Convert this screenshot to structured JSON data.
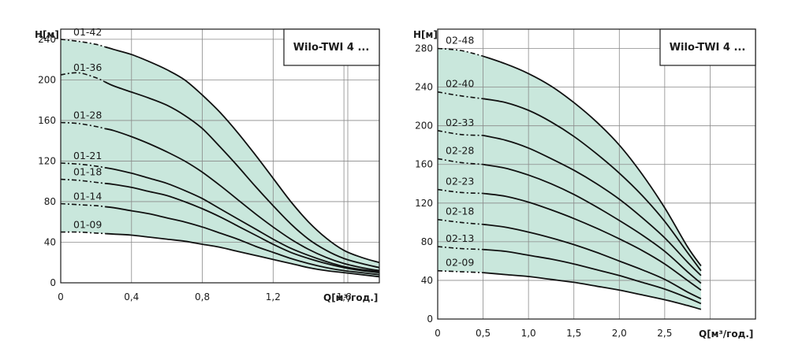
{
  "colors": {
    "band": "#c9e7dc",
    "curve": "#111111",
    "grid": "#8a8a8a"
  },
  "chart_data": [
    {
      "type": "line",
      "title": "Wilo-TWI 4 ...",
      "ylabel": "H[м]",
      "xlabel": "Q[м³/год.]",
      "xlim": [
        0,
        1.8
      ],
      "ylim": [
        0,
        250
      ],
      "xticks": [
        0,
        0.4,
        0.8,
        1.2,
        1.6
      ],
      "xtick_labels": [
        "0",
        "0,4",
        "0,8",
        "1,2",
        "1,6"
      ],
      "yticks": [
        0,
        40,
        80,
        120,
        160,
        200,
        240
      ],
      "ytick_labels": [
        "0",
        "40",
        "80",
        "120",
        "160",
        "200",
        "240"
      ],
      "dash_until": 0.25,
      "series": [
        {
          "name": "01-42",
          "x": [
            0,
            0.1,
            0.2,
            0.3,
            0.4,
            0.5,
            0.6,
            0.7,
            0.8,
            0.9,
            1.0,
            1.1,
            1.2,
            1.3,
            1.4,
            1.5,
            1.6,
            1.7,
            1.8
          ],
          "values": [
            240,
            238,
            235,
            230,
            225,
            218,
            210,
            200,
            185,
            168,
            148,
            126,
            103,
            80,
            60,
            44,
            32,
            25,
            20
          ]
        },
        {
          "name": "01-36",
          "x": [
            0,
            0.1,
            0.2,
            0.3,
            0.4,
            0.5,
            0.6,
            0.7,
            0.8,
            0.9,
            1.0,
            1.1,
            1.2,
            1.3,
            1.4,
            1.5,
            1.6,
            1.7,
            1.8
          ],
          "values": [
            205,
            207,
            202,
            194,
            188,
            182,
            175,
            165,
            152,
            134,
            115,
            95,
            76,
            58,
            43,
            32,
            24,
            19,
            15
          ]
        },
        {
          "name": "01-28",
          "x": [
            0,
            0.1,
            0.2,
            0.3,
            0.4,
            0.5,
            0.6,
            0.7,
            0.8,
            0.9,
            1.0,
            1.1,
            1.2,
            1.3,
            1.4,
            1.5,
            1.6,
            1.7,
            1.8
          ],
          "values": [
            158,
            157,
            154,
            150,
            144,
            137,
            129,
            120,
            109,
            96,
            82,
            68,
            55,
            43,
            33,
            25,
            19,
            15,
            12
          ]
        },
        {
          "name": "01-21",
          "x": [
            0,
            0.1,
            0.2,
            0.3,
            0.4,
            0.5,
            0.6,
            0.7,
            0.8,
            0.9,
            1.0,
            1.1,
            1.2,
            1.3,
            1.4,
            1.5,
            1.6,
            1.7,
            1.8
          ],
          "values": [
            118,
            117,
            115,
            112,
            108,
            103,
            98,
            91,
            83,
            73,
            63,
            53,
            43,
            34,
            27,
            21,
            16,
            13,
            11
          ]
        },
        {
          "name": "01-18",
          "x": [
            0,
            0.1,
            0.2,
            0.3,
            0.4,
            0.5,
            0.6,
            0.7,
            0.8,
            0.9,
            1.0,
            1.1,
            1.2,
            1.3,
            1.4,
            1.5,
            1.6,
            1.7,
            1.8
          ],
          "values": [
            102,
            101,
            99,
            97,
            94,
            90,
            86,
            80,
            73,
            65,
            56,
            47,
            38,
            30,
            24,
            19,
            15,
            12,
            10
          ]
        },
        {
          "name": "01-14",
          "x": [
            0,
            0.1,
            0.2,
            0.3,
            0.4,
            0.5,
            0.6,
            0.7,
            0.8,
            0.9,
            1.0,
            1.1,
            1.2,
            1.3,
            1.4,
            1.5,
            1.6,
            1.7,
            1.8
          ],
          "values": [
            78,
            77,
            76,
            74,
            71,
            68,
            64,
            60,
            55,
            49,
            43,
            36,
            30,
            24,
            19,
            15,
            12,
            10,
            8
          ]
        },
        {
          "name": "01-09",
          "x": [
            0,
            0.1,
            0.2,
            0.3,
            0.4,
            0.5,
            0.6,
            0.7,
            0.8,
            0.9,
            1.0,
            1.1,
            1.2,
            1.3,
            1.4,
            1.5,
            1.6,
            1.7,
            1.8
          ],
          "values": [
            50,
            50,
            49,
            48,
            47,
            45,
            43,
            41,
            38,
            35,
            31,
            27,
            23,
            19,
            15,
            12,
            10,
            8,
            6
          ]
        }
      ]
    },
    {
      "type": "line",
      "title": "Wilo-TWI 4 ...",
      "ylabel": "H[м]",
      "xlabel": "Q[м³/год.]",
      "xlim": [
        0,
        3.5
      ],
      "ylim": [
        0,
        300
      ],
      "xticks": [
        0,
        0.5,
        1.0,
        1.5,
        2.0,
        2.5
      ],
      "xtick_labels": [
        "0",
        "0,5",
        "1,0",
        "1,5",
        "2,0",
        "2,5"
      ],
      "yticks": [
        0,
        40,
        80,
        120,
        160,
        200,
        240,
        280
      ],
      "ytick_labels": [
        "0",
        "40",
        "80",
        "120",
        "160",
        "200",
        "240",
        "280"
      ],
      "dash_until": 0.5,
      "series": [
        {
          "name": "02-48",
          "x": [
            0,
            0.25,
            0.5,
            0.75,
            1.0,
            1.25,
            1.5,
            1.75,
            2.0,
            2.25,
            2.5,
            2.75,
            2.9
          ],
          "values": [
            280,
            278,
            272,
            264,
            254,
            241,
            224,
            204,
            180,
            150,
            115,
            75,
            55
          ]
        },
        {
          "name": "02-40",
          "x": [
            0,
            0.25,
            0.5,
            0.75,
            1.0,
            1.25,
            1.5,
            1.75,
            2.0,
            2.25,
            2.5,
            2.75,
            2.9
          ],
          "values": [
            235,
            231,
            228,
            224,
            216,
            204,
            189,
            171,
            151,
            128,
            101,
            69,
            50
          ]
        },
        {
          "name": "02-33",
          "x": [
            0,
            0.25,
            0.5,
            0.75,
            1.0,
            1.25,
            1.5,
            1.75,
            2.0,
            2.25,
            2.5,
            2.75,
            2.9
          ],
          "values": [
            195,
            191,
            190,
            185,
            177,
            166,
            154,
            140,
            124,
            105,
            84,
            59,
            45
          ]
        },
        {
          "name": "02-28",
          "x": [
            0,
            0.25,
            0.5,
            0.75,
            1.0,
            1.25,
            1.5,
            1.75,
            2.0,
            2.25,
            2.5,
            2.75,
            2.9
          ],
          "values": [
            166,
            162,
            160,
            156,
            149,
            140,
            129,
            116,
            102,
            87,
            70,
            49,
            37
          ]
        },
        {
          "name": "02-23",
          "x": [
            0,
            0.25,
            0.5,
            0.75,
            1.0,
            1.25,
            1.5,
            1.75,
            2.0,
            2.25,
            2.5,
            2.75,
            2.9
          ],
          "values": [
            134,
            131,
            130,
            127,
            121,
            113,
            104,
            94,
            83,
            71,
            57,
            40,
            30
          ]
        },
        {
          "name": "02-18",
          "x": [
            0,
            0.25,
            0.5,
            0.75,
            1.0,
            1.25,
            1.5,
            1.75,
            2.0,
            2.25,
            2.5,
            2.75,
            2.9
          ],
          "values": [
            103,
            100,
            98,
            95,
            90,
            84,
            77,
            69,
            60,
            51,
            41,
            28,
            21
          ]
        },
        {
          "name": "02-13",
          "x": [
            0,
            0.25,
            0.5,
            0.75,
            1.0,
            1.25,
            1.5,
            1.75,
            2.0,
            2.25,
            2.5,
            2.75,
            2.9
          ],
          "values": [
            75,
            73,
            72,
            70,
            66,
            62,
            57,
            51,
            45,
            38,
            31,
            22,
            16
          ]
        },
        {
          "name": "02-09",
          "x": [
            0,
            0.25,
            0.5,
            0.75,
            1.0,
            1.25,
            1.5,
            1.75,
            2.0,
            2.25,
            2.5,
            2.75,
            2.9
          ],
          "values": [
            50,
            49,
            48,
            46,
            44,
            41,
            38,
            34,
            30,
            25,
            20,
            14,
            10
          ]
        }
      ]
    }
  ]
}
